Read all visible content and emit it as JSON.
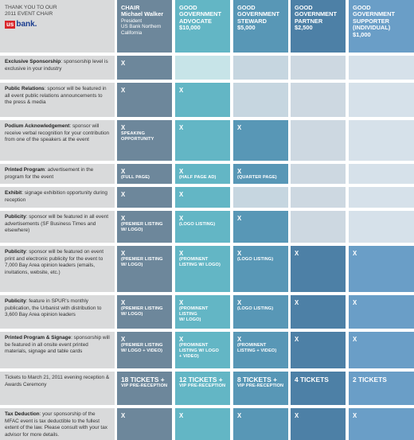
{
  "header": {
    "thanks_line1": "THANK YOU TO OUR",
    "thanks_line2": "2011 EVENT CHAIR",
    "logo_box": "us",
    "logo_text": "bank.",
    "tiers": [
      {
        "title": [
          "CHAIR"
        ],
        "person": "Michael Walker",
        "sub": [
          "President",
          "US Bank Northern",
          "California"
        ],
        "price": ""
      },
      {
        "title": [
          "GOOD",
          "GOVERNMENT",
          "ADVOCATE"
        ],
        "person": "",
        "sub": [],
        "price": "$10,000"
      },
      {
        "title": [
          "GOOD",
          "GOVERNMENT",
          "STEWARD"
        ],
        "person": "",
        "sub": [],
        "price": "$5,000"
      },
      {
        "title": [
          "GOOD",
          "GOVERNMENT",
          "PARTNER"
        ],
        "person": "",
        "sub": [],
        "price": "$2,500"
      },
      {
        "title": [
          "GOOD",
          "GOVERNMENT",
          "SUPPORTER",
          "(INDIVIDUAL)"
        ],
        "person": "",
        "sub": [],
        "price": "$1,000"
      }
    ]
  },
  "rows": [
    {
      "lead": "Exclusive Sponsorship",
      "desc": ": sponsorship level is exclusive in your industry",
      "cells": [
        {
          "mark": "X",
          "note": []
        },
        null,
        null,
        null,
        null
      ]
    },
    {
      "lead": "Public Relations",
      "desc": ": sponsor will be featured in all event public relations announcements to the press & media",
      "cells": [
        {
          "mark": "X",
          "note": []
        },
        {
          "mark": "X",
          "note": []
        },
        null,
        null,
        null
      ]
    },
    {
      "lead": "Podium Acknowledgement",
      "desc": ": sponsor will receive verbal recognition for your contribution from one of the speakers at the event",
      "cells": [
        {
          "mark": "X",
          "note": [
            "SPEAKING",
            "OPPORTUNITY"
          ]
        },
        {
          "mark": "X",
          "note": []
        },
        {
          "mark": "X",
          "note": []
        },
        null,
        null
      ]
    },
    {
      "lead": "Printed Program",
      "desc": ": advertisement in the program for the event",
      "cells": [
        {
          "mark": "X",
          "note": [
            "(FULL PAGE)"
          ]
        },
        {
          "mark": "X",
          "note": [
            "(HALF PAGE AD)"
          ]
        },
        {
          "mark": "X",
          "note": [
            "(QUARTER  PAGE)"
          ]
        },
        null,
        null
      ]
    },
    {
      "lead": "Exhibit",
      "desc": ": signage exhibition opportunity during reception",
      "cells": [
        {
          "mark": "X",
          "note": []
        },
        {
          "mark": "X",
          "note": []
        },
        null,
        null,
        null
      ]
    },
    {
      "lead": "Publicity",
      "desc": ": sponsor will be featured in all event advertisements (SF Business Times and elsewhere)",
      "cells": [
        {
          "mark": "X",
          "note": [
            "(PREMIER LISTING",
            "W/ LOGO)"
          ]
        },
        {
          "mark": "X",
          "note": [
            "(LOGO LISTING)"
          ]
        },
        {
          "mark": "X",
          "note": []
        },
        null,
        null
      ]
    },
    {
      "lead": "Publicity",
      "desc": ": sponsor will be featured on event print and electronic publicity for the event to 7,000 Bay Area opinion leaders (emails, invitations, website, etc.)",
      "cells": [
        {
          "mark": "X",
          "note": [
            "(PREMIER LISTING",
            "W/ LOGO)"
          ]
        },
        {
          "mark": "X",
          "note": [
            "(PROMINENT",
            "LISTING W/ LOGO)"
          ]
        },
        {
          "mark": "X",
          "note": [
            "(LOGO LISTING)"
          ]
        },
        {
          "mark": "X",
          "note": []
        },
        {
          "mark": "X",
          "note": []
        }
      ]
    },
    {
      "lead": "Publicity",
      "desc": ": feature in SPUR's monthly publication, the Urbanist with distribution to 3,600 Bay Area opinion leaders",
      "cells": [
        {
          "mark": "X",
          "note": [
            "(PREMIER LISTING",
            "W/ LOGO)"
          ]
        },
        {
          "mark": "X",
          "note": [
            "(PROMINENT LISTING",
            "W/ LOGO)"
          ]
        },
        {
          "mark": "X",
          "note": [
            "(LOGO LISTING)"
          ]
        },
        {
          "mark": "X",
          "note": []
        },
        {
          "mark": "X",
          "note": []
        }
      ]
    },
    {
      "lead": "Printed Program & Signage",
      "desc": ": sponsorship will be featured in all onsite event printed materials, signage and table cards",
      "cells": [
        {
          "mark": "X",
          "note": [
            "(PREMIER LISTING",
            "W/ LOGO + VIDEO)"
          ]
        },
        {
          "mark": "X",
          "note": [
            "(PROMINENT",
            "LISTING W/ LOGO",
            "+ VIDEO)"
          ]
        },
        {
          "mark": "X",
          "note": [
            "(PROMINENT",
            "LISTING + VIDEO)"
          ]
        },
        {
          "mark": "X",
          "note": []
        },
        {
          "mark": "X",
          "note": []
        }
      ]
    },
    {
      "lead": "",
      "desc": "Tickets to March 21, 2011 evening reception & Awards Ceremony",
      "cells": [
        {
          "big": "18 TICKETS +",
          "note": [
            "VIP PRE-RECEPTION"
          ]
        },
        {
          "big": "12 TICKETS +",
          "note": [
            "VIP PRE-RECEPTION"
          ]
        },
        {
          "big": "8 TICKETS +",
          "note": [
            "VIP PRE-RECEPTION"
          ]
        },
        {
          "big": "4 TICKETS",
          "note": []
        },
        {
          "big": "2 TICKETS",
          "note": []
        }
      ]
    },
    {
      "lead": "Tax Deduction",
      "desc": ": your sponsorship of the MFAC event is tax deductible to the fullest extent of the law. Please consult with your tax advisor for more details.",
      "cells": [
        {
          "mark": "X",
          "note": []
        },
        {
          "mark": "X",
          "note": []
        },
        {
          "mark": "X",
          "note": []
        },
        {
          "mark": "X",
          "note": []
        },
        {
          "mark": "X",
          "note": []
        }
      ]
    }
  ]
}
